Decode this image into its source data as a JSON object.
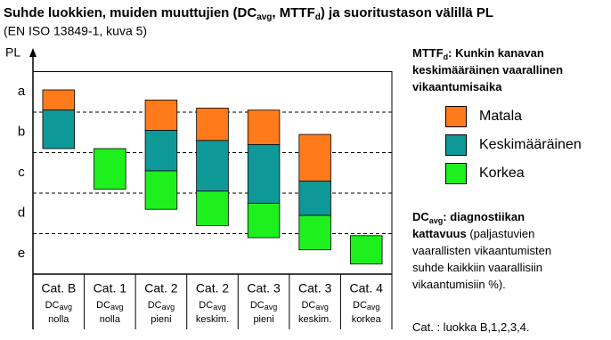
{
  "chart_data": {
    "type": "floating_bar",
    "title_parts": [
      "Suhde luokkien, muiden muuttujien (DC",
      "avg",
      ", MTTF",
      "d",
      ") ja suoritustason välillä PL"
    ],
    "subtitle": "(EN ISO 13849-1, kuva 5)",
    "y_label": "PL",
    "categories": [
      "Cat. B",
      "Cat. 1",
      "Cat. 2",
      "Cat. 2",
      "Cat. 3",
      "Cat. 3",
      "Cat. 4"
    ],
    "dc_label": [
      "DC",
      "avg"
    ],
    "category_sublabels": [
      "nolla",
      "nolla",
      "pieni",
      "keskim.",
      "pieni",
      "keskim.",
      "korkea"
    ],
    "ylim": [
      0,
      5
    ],
    "yticks": [
      {
        "value": 4.5,
        "label": "a"
      },
      {
        "value": 3.5,
        "label": "b"
      },
      {
        "value": 2.5,
        "label": "c"
      },
      {
        "value": 1.5,
        "label": "d"
      },
      {
        "value": 0.5,
        "label": "e"
      }
    ],
    "level_boundaries": [
      1,
      2,
      3,
      4
    ],
    "series": [
      {
        "name": "Matala",
        "color": "#ff7a1a",
        "values": [
          [
            4.05,
            4.55
          ],
          null,
          [
            3.55,
            4.3
          ],
          [
            3.3,
            4.1
          ],
          [
            3.2,
            4.05
          ],
          [
            2.3,
            3.45
          ],
          null
        ]
      },
      {
        "name": "Keskimääräinen",
        "color": "#0f9898",
        "values": [
          [
            3.1,
            4.05
          ],
          null,
          [
            2.55,
            3.55
          ],
          [
            2.05,
            3.3
          ],
          [
            1.75,
            3.2
          ],
          [
            1.45,
            2.3
          ],
          null
        ]
      },
      {
        "name": "Korkea",
        "color": "#1ef01e",
        "values": [
          null,
          [
            2.1,
            3.1
          ],
          [
            1.6,
            2.55
          ],
          [
            1.2,
            2.05
          ],
          [
            0.9,
            1.75
          ],
          [
            0.6,
            1.45
          ],
          [
            0.25,
            0.95
          ]
        ]
      }
    ],
    "mttf_note": {
      "term": [
        "MTTF",
        "d"
      ],
      "text": ": Kunkin kanavan\nkeskimääräinen vaarallinen\nvikaantumisaika"
    },
    "dc_note": {
      "term": [
        "DC",
        "avg"
      ],
      "bold_text": ": diagnostiikan\nkattavuus",
      "text": " (paljastuvien\nvaarallisten vikaantumisten\nsuhde kaikkiin vaarallisiin\nvikaantumisiin %)."
    },
    "cat_note": "Cat. : luokka B,1,2,3,4."
  }
}
